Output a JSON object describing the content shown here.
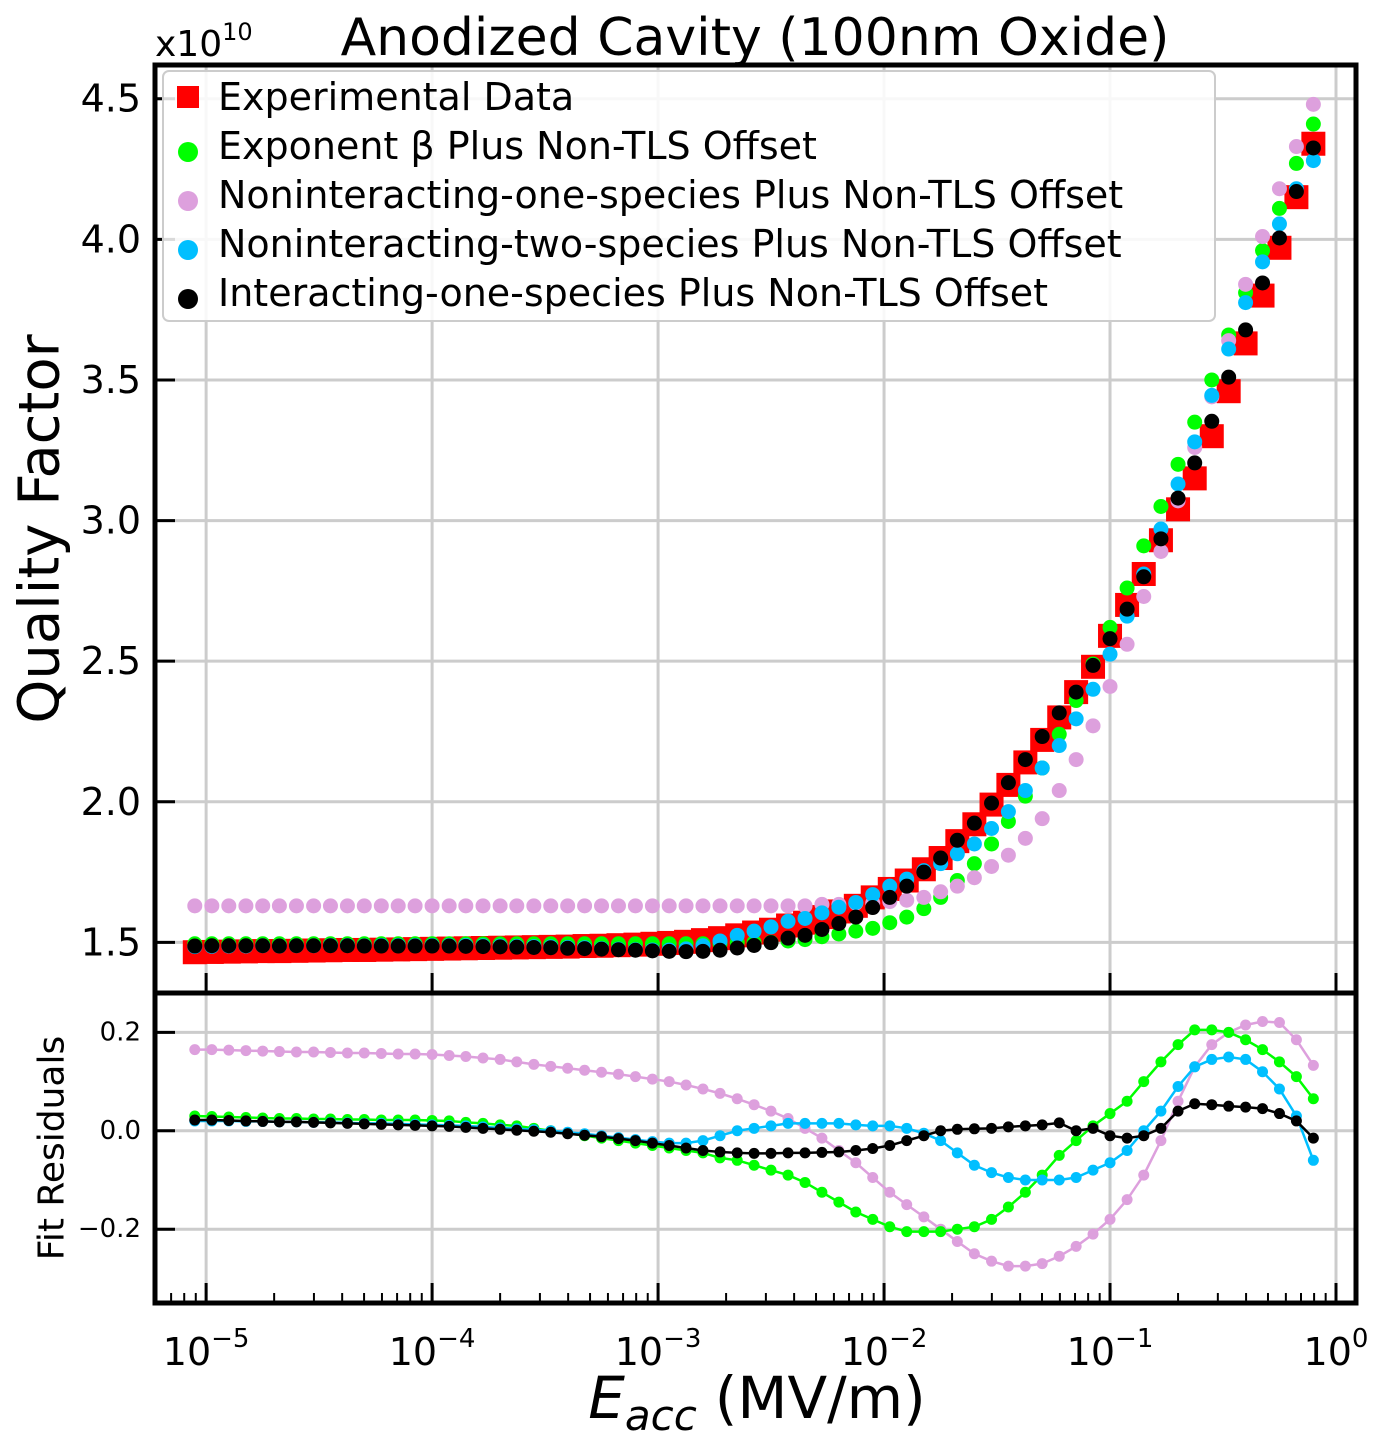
{
  "chart_data": [
    {
      "type": "scatter",
      "title": "Anodized Cavity (100nm Oxide)",
      "multiplier": {
        "base": "x10",
        "exponent": "10"
      },
      "ylabel": "Quality Factor",
      "xscale": "log",
      "grid": true,
      "legend": "upper left",
      "xlim": [
        5.94e-06,
        1.226
      ],
      "ylim": [
        1.32,
        4.62
      ],
      "xticks": [
        1e-05,
        0.0001,
        0.001,
        0.01,
        0.1,
        1
      ],
      "yticks": [
        1.5,
        {
          "value": 2,
          "label": "2.0"
        },
        2.5,
        {
          "value": 3,
          "label": "3.0"
        },
        3.5,
        {
          "value": 4,
          "label": "4.0"
        },
        4.5
      ],
      "x": [
        8.91e-06,
        1.06e-05,
        1.26e-05,
        1.5e-05,
        1.78e-05,
        2.11e-05,
        2.51e-05,
        2.99e-05,
        3.55e-05,
        4.22e-05,
        5.01e-05,
        5.96e-05,
        7.08e-05,
        8.41e-05,
        0.0001,
        0.000119,
        0.000141,
        0.000168,
        0.0002,
        0.000237,
        0.000282,
        0.000335,
        0.000398,
        0.000473,
        0.000562,
        0.000668,
        0.000794,
        0.000944,
        0.00112,
        0.00133,
        0.00158,
        0.00188,
        0.00224,
        0.00266,
        0.00316,
        0.00376,
        0.00447,
        0.00531,
        0.00631,
        0.0075,
        0.00891,
        0.0106,
        0.0126,
        0.015,
        0.0178,
        0.0211,
        0.0251,
        0.0299,
        0.0355,
        0.0422,
        0.0501,
        0.0596,
        0.0708,
        0.0841,
        0.1,
        0.119,
        0.141,
        0.168,
        0.2,
        0.237,
        0.282,
        0.335,
        0.398,
        0.473,
        0.562,
        0.668,
        0.794
      ],
      "series": [
        {
          "name": "Experimental Data",
          "color": "#ff0000",
          "marker": "square",
          "values": [
            1.465,
            1.466,
            1.467,
            1.468,
            1.469,
            1.469,
            1.47,
            1.471,
            1.472,
            1.473,
            1.473,
            1.474,
            1.475,
            1.476,
            1.477,
            1.478,
            1.479,
            1.48,
            1.481,
            1.482,
            1.483,
            1.484,
            1.485,
            1.487,
            1.488,
            1.49,
            1.492,
            1.495,
            1.498,
            1.502,
            1.508,
            1.515,
            1.525,
            1.535,
            1.545,
            1.56,
            1.57,
            1.59,
            1.61,
            1.63,
            1.66,
            1.69,
            1.72,
            1.76,
            1.8,
            1.86,
            1.92,
            1.99,
            2.06,
            2.14,
            2.22,
            2.3,
            2.39,
            2.48,
            2.59,
            2.7,
            2.81,
            2.93,
            3.04,
            3.15,
            3.3,
            3.46,
            3.63,
            3.8,
            3.97,
            4.15,
            4.34
          ]
        },
        {
          "name": "Exponent β Plus Non-TLS Offset",
          "color": "#00ff00",
          "marker": "circle",
          "values": [
            1.495,
            1.495,
            1.495,
            1.495,
            1.495,
            1.495,
            1.495,
            1.495,
            1.495,
            1.495,
            1.495,
            1.495,
            1.495,
            1.495,
            1.495,
            1.495,
            1.495,
            1.495,
            1.495,
            1.495,
            1.495,
            1.495,
            1.495,
            1.495,
            1.495,
            1.495,
            1.495,
            1.495,
            1.495,
            1.495,
            1.495,
            1.495,
            1.5,
            1.5,
            1.5,
            1.505,
            1.51,
            1.52,
            1.53,
            1.54,
            1.55,
            1.57,
            1.59,
            1.62,
            1.66,
            1.72,
            1.78,
            1.85,
            1.93,
            2.02,
            2.12,
            2.24,
            2.36,
            2.49,
            2.62,
            2.76,
            2.91,
            3.05,
            3.2,
            3.35,
            3.5,
            3.66,
            3.81,
            3.96,
            4.11,
            4.27,
            4.41
          ]
        },
        {
          "name": "Noninteracting-one-species Plus Non-TLS Offset",
          "color": "#dda0dd",
          "marker": "circle",
          "values": [
            1.63,
            1.63,
            1.63,
            1.63,
            1.63,
            1.63,
            1.63,
            1.63,
            1.63,
            1.63,
            1.63,
            1.63,
            1.63,
            1.63,
            1.63,
            1.63,
            1.63,
            1.63,
            1.63,
            1.63,
            1.63,
            1.63,
            1.63,
            1.63,
            1.63,
            1.63,
            1.63,
            1.63,
            1.63,
            1.63,
            1.63,
            1.63,
            1.63,
            1.63,
            1.63,
            1.63,
            1.63,
            1.635,
            1.635,
            1.64,
            1.64,
            1.645,
            1.65,
            1.66,
            1.68,
            1.7,
            1.73,
            1.77,
            1.81,
            1.87,
            1.94,
            2.04,
            2.15,
            2.27,
            2.41,
            2.56,
            2.73,
            2.89,
            3.07,
            3.26,
            3.44,
            3.64,
            3.84,
            4.01,
            4.18,
            4.33,
            4.48
          ]
        },
        {
          "name": "Noninteracting-two-species Plus Non-TLS Offset",
          "color": "#00bfff",
          "marker": "circle",
          "values": [
            1.485,
            1.486,
            1.487,
            1.487,
            1.488,
            1.487,
            1.488,
            1.488,
            1.489,
            1.489,
            1.488,
            1.489,
            1.489,
            1.489,
            1.489,
            1.489,
            1.489,
            1.488,
            1.487,
            1.486,
            1.485,
            1.484,
            1.482,
            1.481,
            1.478,
            1.476,
            1.474,
            1.473,
            1.473,
            1.477,
            1.488,
            1.505,
            1.525,
            1.54,
            1.555,
            1.575,
            1.585,
            1.605,
            1.625,
            1.642,
            1.67,
            1.7,
            1.725,
            1.755,
            1.78,
            1.815,
            1.85,
            1.905,
            1.965,
            2.04,
            2.12,
            2.2,
            2.295,
            2.4,
            2.525,
            2.66,
            2.81,
            2.97,
            3.13,
            3.28,
            3.445,
            3.61,
            3.775,
            3.92,
            4.055,
            4.18,
            4.28
          ]
        },
        {
          "name": "Interacting-one-species Plus Non-TLS Offset",
          "color": "#000000",
          "marker": "circle",
          "values": [
            1.487,
            1.488,
            1.488,
            1.488,
            1.488,
            1.487,
            1.488,
            1.488,
            1.488,
            1.488,
            1.487,
            1.487,
            1.487,
            1.487,
            1.487,
            1.487,
            1.486,
            1.485,
            1.484,
            1.483,
            1.482,
            1.481,
            1.479,
            1.478,
            1.476,
            1.474,
            1.472,
            1.47,
            1.468,
            1.467,
            1.468,
            1.472,
            1.48,
            1.489,
            1.499,
            1.515,
            1.525,
            1.546,
            1.567,
            1.59,
            1.624,
            1.66,
            1.7,
            1.75,
            1.8,
            1.863,
            1.924,
            1.995,
            2.068,
            2.15,
            2.232,
            2.316,
            2.39,
            2.485,
            2.58,
            2.685,
            2.8,
            2.935,
            3.08,
            3.205,
            3.353,
            3.51,
            3.678,
            3.845,
            4.005,
            4.17,
            4.325
          ]
        }
      ]
    },
    {
      "type": "line",
      "ylabel": "Fit Residuals",
      "xlabel": {
        "symbol": "E",
        "subscript": "acc",
        "unit": "(MV/m)"
      },
      "xscale": "log",
      "grid": true,
      "xlim": [
        5.94e-06,
        1.226
      ],
      "ylim": [
        -0.35,
        0.28
      ],
      "xticks": [
        {
          "value": 1e-05,
          "label": "10",
          "exponent": "−5"
        },
        {
          "value": 0.0001,
          "label": "10",
          "exponent": "−4"
        },
        {
          "value": 0.001,
          "label": "10",
          "exponent": "−3"
        },
        {
          "value": 0.01,
          "label": "10",
          "exponent": "−2"
        },
        {
          "value": 0.1,
          "label": "10",
          "exponent": "−1"
        },
        {
          "value": 1,
          "label": "10",
          "exponent": "0"
        }
      ],
      "xminorticks": [
        6e-06,
        7e-06,
        8e-06,
        9e-06,
        2e-05,
        3e-05,
        4e-05,
        5e-05,
        6e-05,
        7e-05,
        8e-05,
        9e-05,
        0.0002,
        0.0003,
        0.0004,
        0.0005,
        0.0006,
        0.0007,
        0.0008,
        0.0009,
        0.002,
        0.003,
        0.004,
        0.005,
        0.006,
        0.007,
        0.008,
        0.009,
        0.02,
        0.03,
        0.04,
        0.05,
        0.06,
        0.07,
        0.08,
        0.09,
        0.2,
        0.3,
        0.4,
        0.5,
        0.6,
        0.7,
        0.8,
        0.9
      ],
      "yticks": [
        {
          "value": -0.2,
          "label": "−0.2"
        },
        {
          "value": 0,
          "label": "0.0"
        },
        0.2
      ],
      "x": [
        8.91e-06,
        1.06e-05,
        1.26e-05,
        1.5e-05,
        1.78e-05,
        2.11e-05,
        2.51e-05,
        2.99e-05,
        3.55e-05,
        4.22e-05,
        5.01e-05,
        5.96e-05,
        7.08e-05,
        8.41e-05,
        0.0001,
        0.000119,
        0.000141,
        0.000168,
        0.0002,
        0.000237,
        0.000282,
        0.000335,
        0.000398,
        0.000473,
        0.000562,
        0.000668,
        0.000794,
        0.000944,
        0.00112,
        0.00133,
        0.00158,
        0.00188,
        0.00224,
        0.00266,
        0.00316,
        0.00376,
        0.00447,
        0.00531,
        0.00631,
        0.0075,
        0.00891,
        0.0106,
        0.0126,
        0.015,
        0.0178,
        0.0211,
        0.0251,
        0.0299,
        0.0355,
        0.0422,
        0.0501,
        0.0596,
        0.0708,
        0.0841,
        0.1,
        0.119,
        0.141,
        0.168,
        0.2,
        0.237,
        0.282,
        0.335,
        0.398,
        0.473,
        0.562,
        0.668,
        0.794
      ],
      "series": [
        {
          "color": "#dda0dd",
          "values": [
            0.165,
            0.165,
            0.164,
            0.163,
            0.162,
            0.161,
            0.16,
            0.16,
            0.159,
            0.158,
            0.158,
            0.157,
            0.156,
            0.156,
            0.155,
            0.153,
            0.151,
            0.148,
            0.145,
            0.14,
            0.135,
            0.131,
            0.127,
            0.123,
            0.119,
            0.115,
            0.11,
            0.105,
            0.1,
            0.093,
            0.085,
            0.076,
            0.065,
            0.053,
            0.04,
            0.025,
            0.005,
            -0.015,
            -0.04,
            -0.065,
            -0.095,
            -0.125,
            -0.15,
            -0.175,
            -0.2,
            -0.225,
            -0.25,
            -0.265,
            -0.275,
            -0.275,
            -0.27,
            -0.255,
            -0.235,
            -0.21,
            -0.18,
            -0.14,
            -0.09,
            -0.02,
            0.06,
            0.13,
            0.175,
            0.2,
            0.215,
            0.222,
            0.22,
            0.185,
            0.133
          ]
        },
        {
          "color": "#00ff00",
          "values": [
            0.03,
            0.029,
            0.028,
            0.027,
            0.026,
            0.025,
            0.025,
            0.024,
            0.024,
            0.023,
            0.023,
            0.022,
            0.022,
            0.022,
            0.021,
            0.02,
            0.017,
            0.015,
            0.012,
            0.01,
            0.005,
            0,
            -0.005,
            -0.01,
            -0.015,
            -0.02,
            -0.025,
            -0.03,
            -0.035,
            -0.04,
            -0.045,
            -0.055,
            -0.06,
            -0.07,
            -0.08,
            -0.09,
            -0.105,
            -0.125,
            -0.145,
            -0.165,
            -0.18,
            -0.195,
            -0.205,
            -0.205,
            -0.205,
            -0.2,
            -0.195,
            -0.18,
            -0.155,
            -0.125,
            -0.09,
            -0.05,
            -0.02,
            0.01,
            0.035,
            0.06,
            0.1,
            0.14,
            0.175,
            0.205,
            0.205,
            0.2,
            0.185,
            0.165,
            0.14,
            0.11,
            0.065
          ]
        },
        {
          "color": "#00bfff",
          "values": [
            0.02,
            0.02,
            0.02,
            0.019,
            0.019,
            0.018,
            0.018,
            0.017,
            0.017,
            0.016,
            0.015,
            0.015,
            0.014,
            0.013,
            0.012,
            0.011,
            0.01,
            0.008,
            0.006,
            0.004,
            0.002,
            0,
            -0.003,
            -0.006,
            -0.01,
            -0.014,
            -0.018,
            -0.022,
            -0.025,
            -0.025,
            -0.02,
            -0.01,
            0,
            0.005,
            0.01,
            0.015,
            0.015,
            0.015,
            0.015,
            0.012,
            0.01,
            0.01,
            0.005,
            -0.005,
            -0.02,
            -0.045,
            -0.07,
            -0.085,
            -0.095,
            -0.1,
            -0.1,
            -0.1,
            -0.095,
            -0.08,
            -0.065,
            -0.04,
            0,
            0.04,
            0.09,
            0.13,
            0.145,
            0.15,
            0.145,
            0.12,
            0.085,
            0.03,
            -0.06
          ]
        },
        {
          "color": "#000000",
          "values": [
            0.022,
            0.022,
            0.021,
            0.02,
            0.019,
            0.018,
            0.018,
            0.017,
            0.016,
            0.015,
            0.014,
            0.013,
            0.012,
            0.011,
            0.01,
            0.009,
            0.007,
            0.005,
            0.003,
            0.001,
            -0.001,
            -0.003,
            -0.006,
            -0.009,
            -0.012,
            -0.016,
            -0.02,
            -0.025,
            -0.03,
            -0.035,
            -0.04,
            -0.043,
            -0.045,
            -0.046,
            -0.046,
            -0.045,
            -0.045,
            -0.044,
            -0.043,
            -0.04,
            -0.036,
            -0.03,
            -0.02,
            -0.01,
            0,
            0.003,
            0.004,
            0.005,
            0.008,
            0.01,
            0.012,
            0.016,
            0,
            0.005,
            -0.01,
            -0.015,
            -0.01,
            0.005,
            0.04,
            0.055,
            0.053,
            0.05,
            0.048,
            0.045,
            0.035,
            0.02,
            -0.015
          ]
        }
      ]
    }
  ]
}
